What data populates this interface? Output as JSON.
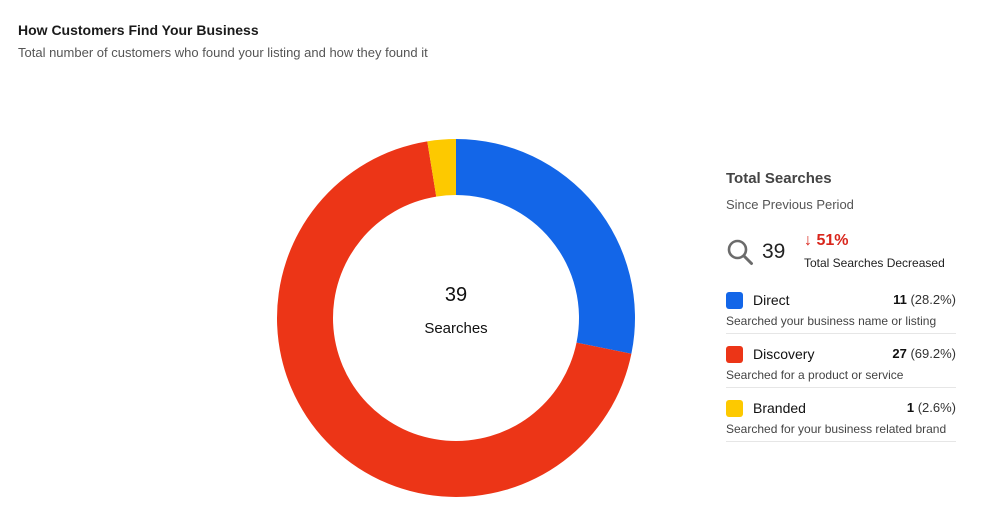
{
  "header": {
    "title": "How Customers Find Your Business",
    "subtitle": "Total number of customers who found your listing and how they found it"
  },
  "center": {
    "value": "39",
    "label": "Searches"
  },
  "summary": {
    "title": "Total Searches",
    "subtitle": "Since Previous Period",
    "total": "39",
    "change": "51%",
    "change_arrow": "↓",
    "change_label": "Total Searches Decreased",
    "icon": "search-icon"
  },
  "colors": {
    "direct": "#1366e8",
    "discovery": "#ec3517",
    "branded": "#fdc900",
    "negative": "#d9261c"
  },
  "chart_data": {
    "type": "pie",
    "title": "How Customers Find Your Business",
    "categories": [
      "Direct",
      "Discovery",
      "Branded"
    ],
    "values": [
      11,
      27,
      1
    ],
    "percents": [
      "28.2%",
      "69.2%",
      "2.6%"
    ],
    "descriptions": [
      "Searched your business name or listing",
      "Searched for a product or service",
      "Searched for your business related brand"
    ],
    "colors": [
      "#1366e8",
      "#ec3517",
      "#fdc900"
    ],
    "total": 39,
    "donut": true,
    "legend": "right"
  }
}
